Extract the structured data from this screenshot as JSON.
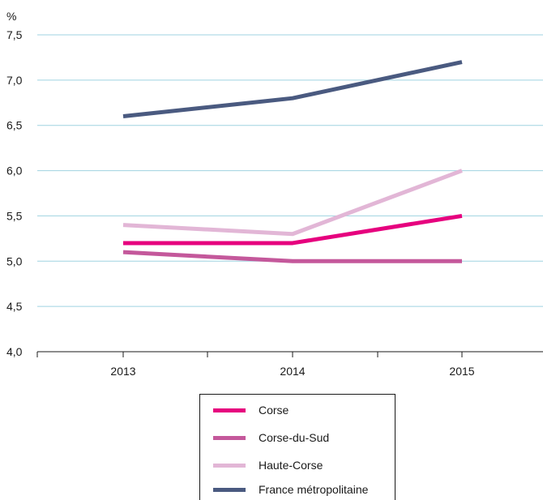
{
  "chart_data": {
    "type": "line",
    "ylabel": "%",
    "categories": [
      "2013",
      "2014",
      "2015"
    ],
    "ylim": [
      4.0,
      7.5
    ],
    "yticks": [
      "4,0",
      "4,5",
      "5,0",
      "5,5",
      "6,0",
      "6,5",
      "7,0",
      "7,5"
    ],
    "grid": true,
    "legend_position": "bottom",
    "series": [
      {
        "name": "Corse",
        "values": [
          5.2,
          5.2,
          5.5
        ],
        "color": "#e6007e"
      },
      {
        "name": "Corse-du-Sud",
        "values": [
          5.1,
          5.0,
          5.0
        ],
        "color": "#c4589b"
      },
      {
        "name": "Haute-Corse",
        "values": [
          5.4,
          5.3,
          6.0
        ],
        "color": "#e2b6d6"
      },
      {
        "name": "France métropolitaine",
        "values": [
          6.6,
          6.8,
          7.2
        ],
        "color": "#4a5a80"
      }
    ]
  }
}
